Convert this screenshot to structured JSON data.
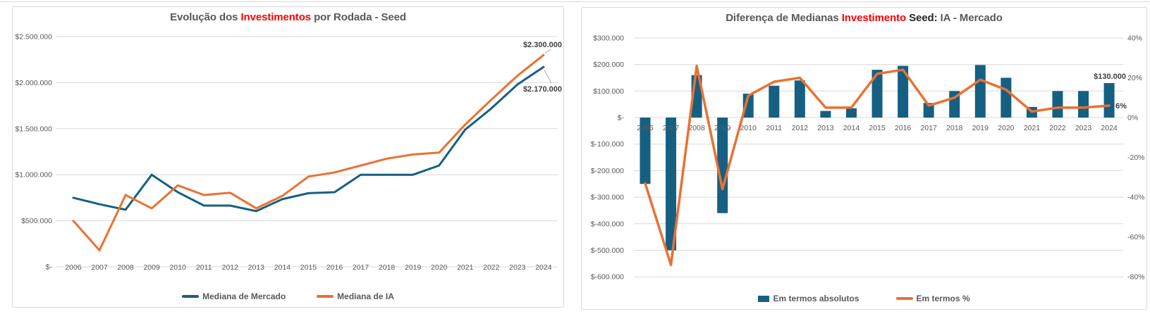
{
  "palette": {
    "blue": "#156082",
    "orange": "#E97132",
    "grid": "#D9D9D9",
    "axis_text": "#595959",
    "title_text": "#595959",
    "title_red": "#FF0000",
    "annotation_text": "#3F3F3F",
    "leader_line": "#A6A6A6"
  },
  "chart_data": [
    {
      "type": "line",
      "title": {
        "pre": "Evolução dos ",
        "red": "Investimentos",
        "dark": "",
        "post": " por Rodada - Seed"
      },
      "categories": [
        "2006",
        "2007",
        "2008",
        "2009",
        "2010",
        "2011",
        "2012",
        "2013",
        "2014",
        "2015",
        "2016",
        "2017",
        "2018",
        "2019",
        "2020",
        "2021",
        "2022",
        "2023",
        "2024"
      ],
      "series": [
        {
          "name": "Mediana de Mercado",
          "color": "#156082",
          "values": [
            750000,
            680000,
            620000,
            1000000,
            810000,
            665000,
            665000,
            605000,
            735000,
            800000,
            810000,
            1000000,
            1000000,
            1000000,
            1100000,
            1490000,
            1720000,
            1980000,
            2170000
          ]
        },
        {
          "name": "Mediana de IA",
          "color": "#E97132",
          "values": [
            500000,
            180000,
            780000,
            635000,
            885000,
            780000,
            805000,
            635000,
            770000,
            980000,
            1025000,
            1100000,
            1175000,
            1220000,
            1240000,
            1545000,
            1815000,
            2075000,
            2300000
          ]
        }
      ],
      "y_axis": {
        "min": 0,
        "max": 2500000,
        "ticks": [
          {
            "value": 2500000,
            "label": "$2.500.000"
          },
          {
            "value": 2000000,
            "label": "$2.000.000"
          },
          {
            "value": 1500000,
            "label": "$1.500.000"
          },
          {
            "value": 1000000,
            "label": "$1.000.000"
          },
          {
            "value": 500000,
            "label": "$500.000"
          },
          {
            "value": 0,
            "label": "$-"
          }
        ]
      },
      "annotations": [
        {
          "text": "$2.300.000",
          "series": 1,
          "index": 18
        },
        {
          "text": "$2.170.000",
          "series": 0,
          "index": 18
        }
      ],
      "grid": true,
      "legend_position": "bottom"
    },
    {
      "type": "bar+line",
      "title": {
        "pre": "Diferença de Medianas ",
        "red": "Investimento",
        "dark": " Seed:",
        "post": " IA - Mercado"
      },
      "categories": [
        "2006",
        "2007",
        "2008",
        "2009",
        "2010",
        "2011",
        "2012",
        "2013",
        "2014",
        "2015",
        "2016",
        "2017",
        "2018",
        "2019",
        "2020",
        "2021",
        "2022",
        "2023",
        "2024"
      ],
      "bar_series": {
        "name": "Em termos absolutos",
        "color": "#156082",
        "axis": "left",
        "values": [
          -250000,
          -500000,
          160000,
          -360000,
          90000,
          120000,
          140000,
          25000,
          35000,
          180000,
          195000,
          55000,
          100000,
          198000,
          150000,
          40000,
          100000,
          100000,
          130000
        ]
      },
      "line_series": {
        "name": "Em termos %",
        "color": "#E97132",
        "axis": "right",
        "values": [
          -33,
          -74,
          26,
          -36,
          11,
          18,
          20,
          5,
          5,
          22,
          24,
          6,
          10,
          19,
          14,
          3,
          5,
          5,
          6
        ]
      },
      "left_axis": {
        "min": -600000,
        "max": 300000,
        "ticks": [
          {
            "value": 300000,
            "label": "$300.000"
          },
          {
            "value": 200000,
            "label": "$200.000"
          },
          {
            "value": 100000,
            "label": "$100.000"
          },
          {
            "value": 0,
            "label": "$-"
          },
          {
            "value": -100000,
            "label": "$-100.000"
          },
          {
            "value": -200000,
            "label": "$-200.000"
          },
          {
            "value": -300000,
            "label": "$-300.000"
          },
          {
            "value": -400000,
            "label": "$-400.000"
          },
          {
            "value": -500000,
            "label": "$-500.000"
          },
          {
            "value": -600000,
            "label": "$-600.000"
          }
        ]
      },
      "right_axis": {
        "min": -80,
        "max": 40,
        "ticks": [
          {
            "value": 40,
            "label": "40%"
          },
          {
            "value": 20,
            "label": "20%"
          },
          {
            "value": 0,
            "label": "0%"
          },
          {
            "value": -20,
            "label": "-20%"
          },
          {
            "value": -40,
            "label": "-40%"
          },
          {
            "value": -60,
            "label": "-60%"
          },
          {
            "value": -80,
            "label": "-80%"
          }
        ]
      },
      "annotations": [
        {
          "text": "$130.000",
          "target": "bar",
          "index": 18
        },
        {
          "text": "6%",
          "target": "line",
          "index": 18
        }
      ],
      "grid": true,
      "legend_position": "bottom"
    }
  ]
}
